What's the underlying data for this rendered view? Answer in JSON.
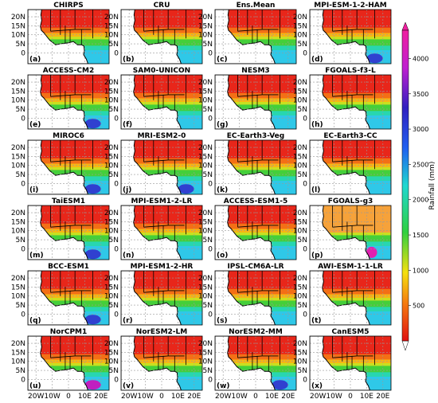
{
  "panels": [
    {
      "title": "CHIRPS",
      "label": "(a)"
    },
    {
      "title": "CRU",
      "label": "(b)"
    },
    {
      "title": "Ens.Mean",
      "label": "(c)"
    },
    {
      "title": "MPI-ESM-1-2-HAM",
      "label": "(d)"
    },
    {
      "title": "ACCESS-CM2",
      "label": "(e)"
    },
    {
      "title": "SAM0-UNICON",
      "label": "(f)"
    },
    {
      "title": "NESM3",
      "label": "(g)"
    },
    {
      "title": "FGOALS-f3-L",
      "label": "(h)"
    },
    {
      "title": "MIROC6",
      "label": "(i)"
    },
    {
      "title": "MRI-ESM2-0",
      "label": "(j)"
    },
    {
      "title": "EC-Earth3-Veg",
      "label": "(k)"
    },
    {
      "title": "EC-Earth3-CC",
      "label": "(l)"
    },
    {
      "title": "TaiESM1",
      "label": "(m)"
    },
    {
      "title": "MPI-ESM1-2-LR",
      "label": "(n)"
    },
    {
      "title": "ACCESS-ESM1-5",
      "label": "(o)"
    },
    {
      "title": "FGOALS-g3",
      "label": "(p)"
    },
    {
      "title": "BCC-ESM1",
      "label": "(q)"
    },
    {
      "title": "MPI-ESM1-2-HR",
      "label": "(r)"
    },
    {
      "title": "IPSL-CM6A-LR",
      "label": "(s)"
    },
    {
      "title": "AWI-ESM-1-1-LR",
      "label": "(t)"
    },
    {
      "title": "NorCPM1",
      "label": "(u)"
    },
    {
      "title": "NorESM2-LM",
      "label": "(v)"
    },
    {
      "title": "NorESM2-MM",
      "label": "(w)"
    },
    {
      "title": "CanESM5",
      "label": "(x)"
    }
  ],
  "y_axis_labels": [
    "20N",
    "15N",
    "10N",
    "5N",
    "0"
  ],
  "x_axis_labels": [
    "20W",
    "10W",
    "0",
    "10E",
    "20E"
  ],
  "colorbar": {
    "label": "Rainfall (mm)",
    "lim": [
      0,
      4400
    ],
    "ticks": [
      500,
      1000,
      1500,
      2000,
      2500,
      3000,
      3500,
      4000
    ]
  }
}
